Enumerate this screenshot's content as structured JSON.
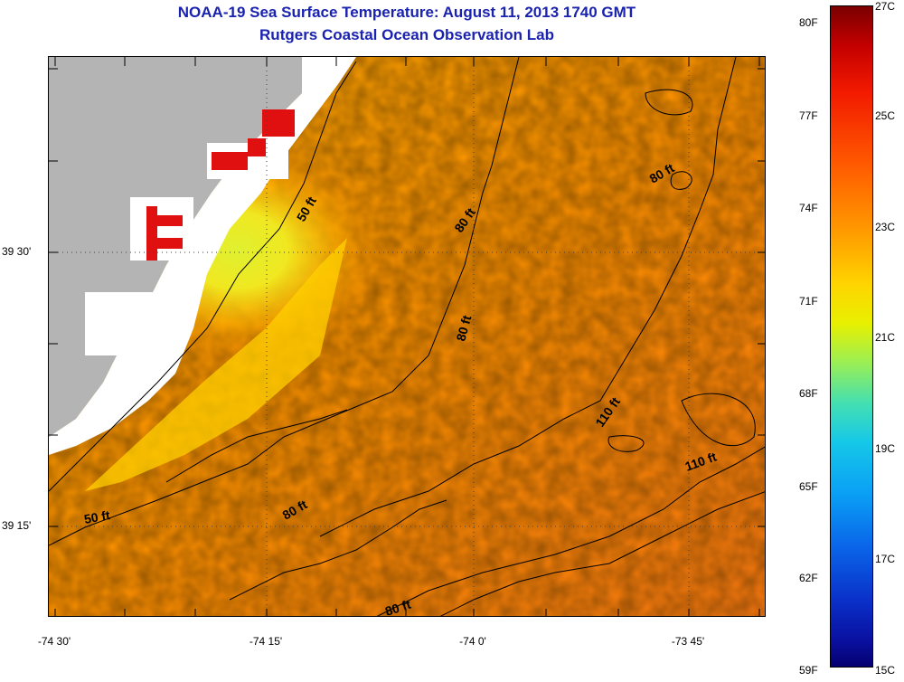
{
  "titles": {
    "line1": "NOAA-19 Sea Surface Temperature:  August 11, 2013 1740 GMT",
    "line2": "Rutgers Coastal Ocean Observation Lab"
  },
  "axes": {
    "lat_labels": [
      "39 30'",
      "39 15'"
    ],
    "lon_labels": [
      "-74 30'",
      "-74 15'",
      "-74 0'",
      "-73 45'"
    ]
  },
  "contour_labels": [
    "50 ft",
    "80 ft",
    "80 ft",
    "80 ft",
    "110 ft",
    "110 ft",
    "50 ft",
    "80 ft",
    "80 ft"
  ],
  "colorbar": {
    "f_labels": [
      "80F",
      "77F",
      "74F",
      "71F",
      "68F",
      "65F",
      "62F",
      "59F"
    ],
    "c_labels": [
      "27C",
      "25C",
      "23C",
      "21C",
      "19C",
      "17C",
      "15C"
    ],
    "min_c": 15,
    "max_c": 27
  },
  "colors": {
    "title": "#1a22b0",
    "land": "#b4b4b4",
    "sea_warm": "#ff8c00",
    "sea_cool": "#e8ec20",
    "hot_spots": "#e01010"
  }
}
